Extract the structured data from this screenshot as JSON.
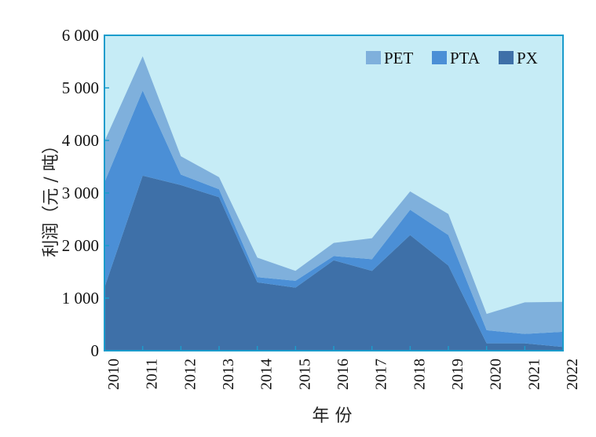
{
  "chart_data": {
    "type": "area",
    "stacked": true,
    "categories": [
      "2010",
      "2011",
      "2012",
      "2013",
      "2014",
      "2015",
      "2016",
      "2017",
      "2018",
      "2019",
      "2020",
      "2021",
      "2022"
    ],
    "series": [
      {
        "name": "PX",
        "color": "#3e70a8",
        "values": [
          1200,
          3330,
          3150,
          2920,
          1300,
          1200,
          1720,
          1520,
          2200,
          1620,
          140,
          140,
          70
        ]
      },
      {
        "name": "PTA",
        "color": "#4b8fd6",
        "values": [
          2000,
          1620,
          200,
          150,
          100,
          130,
          80,
          220,
          480,
          580,
          250,
          180,
          290
        ]
      },
      {
        "name": "PET",
        "color": "#7fb0dc",
        "values": [
          780,
          650,
          350,
          230,
          370,
          190,
          250,
          400,
          350,
          400,
          310,
          600,
          570
        ]
      }
    ],
    "ylim": [
      0,
      6000
    ],
    "yticks": [
      0,
      1000,
      2000,
      3000,
      4000,
      5000,
      6000
    ],
    "ytick_labels": [
      "0",
      "1 000",
      "2 000",
      "3 000",
      "4 000",
      "5 000",
      "6 000"
    ],
    "xlabel": "年 份",
    "ylabel": "利润（元 / 吨）",
    "legend_position": "top-right",
    "legend_order": [
      "PET",
      "PTA",
      "PX"
    ],
    "plot_background": "#c6ecf6",
    "frame_color": "#1b9ccc"
  }
}
